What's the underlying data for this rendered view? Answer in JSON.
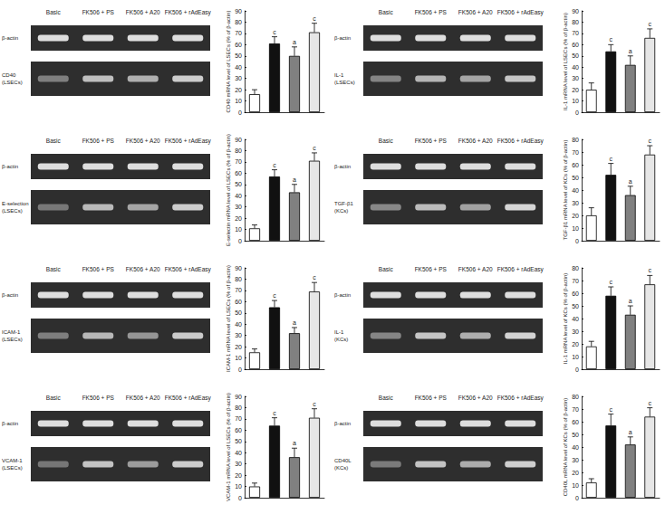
{
  "chart_data": [
    {
      "type": "bar",
      "ylabel": "CD40 mRNA level of LSECs (% of β-actin)",
      "categories": [
        null,
        null,
        null,
        null
      ],
      "values": [
        16,
        61,
        50,
        71
      ],
      "errors": [
        4,
        6,
        8,
        8
      ],
      "significance": [
        null,
        "c",
        "a",
        "c"
      ],
      "colors": [
        "#ffffff",
        "#111111",
        "#808080",
        "#e6e6e6"
      ],
      "ylim": [
        0,
        90
      ],
      "yticks": [
        0,
        10,
        20,
        30,
        40,
        50,
        60,
        70,
        80,
        90
      ],
      "grid": false,
      "tick_labels": "y"
    },
    {
      "type": "bar",
      "ylabel": "IL-1 mRNA level of LSECs (% of β-actin)",
      "categories": [
        null,
        null,
        null,
        null
      ],
      "values": [
        20,
        54,
        42,
        66
      ],
      "errors": [
        6,
        6,
        8,
        8
      ],
      "significance": [
        null,
        "c",
        "a",
        "c"
      ],
      "colors": [
        "#ffffff",
        "#111111",
        "#808080",
        "#e6e6e6"
      ],
      "ylim": [
        0,
        90
      ],
      "yticks": [
        0,
        10,
        20,
        30,
        40,
        50,
        60,
        70,
        80,
        90
      ],
      "grid": false,
      "tick_labels": "y"
    },
    {
      "type": "bar",
      "ylabel": "E-selectin mRNA level of LSECs (% of β-actin)",
      "categories": [
        null,
        null,
        null,
        null
      ],
      "values": [
        11,
        57,
        43,
        71
      ],
      "errors": [
        3,
        6,
        7,
        7
      ],
      "significance": [
        null,
        "c",
        "a",
        "c"
      ],
      "colors": [
        "#ffffff",
        "#111111",
        "#808080",
        "#e6e6e6"
      ],
      "ylim": [
        0,
        90
      ],
      "yticks": [
        0,
        10,
        20,
        30,
        40,
        50,
        60,
        70,
        80,
        90
      ],
      "grid": false,
      "tick_labels": "y"
    },
    {
      "type": "bar",
      "ylabel": "TGF-β1 mRNA level of KCs (% of β-actin)",
      "categories": [
        null,
        null,
        null,
        null
      ],
      "values": [
        20,
        52,
        36,
        68
      ],
      "errors": [
        6,
        9,
        7,
        7
      ],
      "significance": [
        null,
        "c",
        "a",
        "c"
      ],
      "colors": [
        "#ffffff",
        "#111111",
        "#808080",
        "#e6e6e6"
      ],
      "ylim": [
        0,
        80
      ],
      "yticks": [
        0,
        10,
        20,
        30,
        40,
        50,
        60,
        70,
        80
      ],
      "grid": false,
      "tick_labels": "y"
    },
    {
      "type": "bar",
      "ylabel": "ICAM-1 mRNA level of LSECs (% of β-actin)",
      "categories": [
        null,
        null,
        null,
        null
      ],
      "values": [
        15,
        55,
        32,
        69
      ],
      "errors": [
        3,
        6,
        5,
        8
      ],
      "significance": [
        null,
        "c",
        "a",
        "c"
      ],
      "colors": [
        "#ffffff",
        "#111111",
        "#808080",
        "#e6e6e6"
      ],
      "ylim": [
        0,
        90
      ],
      "yticks": [
        0,
        10,
        20,
        30,
        40,
        50,
        60,
        70,
        80,
        90
      ],
      "grid": false,
      "tick_labels": "y"
    },
    {
      "type": "bar",
      "ylabel": "IL-1 mRNA level of KCs (% of β-actin)",
      "categories": [
        null,
        null,
        null,
        null
      ],
      "values": [
        18,
        58,
        43,
        67
      ],
      "errors": [
        4,
        7,
        7,
        7
      ],
      "significance": [
        null,
        "c",
        "a",
        "c"
      ],
      "colors": [
        "#ffffff",
        "#111111",
        "#808080",
        "#e6e6e6"
      ],
      "ylim": [
        0,
        80
      ],
      "yticks": [
        0,
        10,
        20,
        30,
        40,
        50,
        60,
        70,
        80
      ],
      "grid": false,
      "tick_labels": "y"
    },
    {
      "type": "bar",
      "ylabel": "VCAM-1 mRNA level of LSECs (% of β-actin)",
      "categories": [
        null,
        null,
        null,
        null
      ],
      "values": [
        10,
        64,
        36,
        71
      ],
      "errors": [
        3,
        7,
        8,
        8
      ],
      "significance": [
        null,
        "c",
        "a",
        "c"
      ],
      "colors": [
        "#ffffff",
        "#111111",
        "#808080",
        "#e6e6e6"
      ],
      "ylim": [
        0,
        90
      ],
      "yticks": [
        0,
        10,
        20,
        30,
        40,
        50,
        60,
        70,
        80,
        90
      ],
      "grid": false,
      "tick_labels": "y"
    },
    {
      "type": "bar",
      "ylabel": "CD40L mRNA level of KCs (% of β-actin)",
      "categories": [
        null,
        null,
        null,
        null
      ],
      "values": [
        12,
        57,
        42,
        64
      ],
      "errors": [
        3,
        9,
        6,
        7
      ],
      "significance": [
        null,
        "c",
        "a",
        "c"
      ],
      "colors": [
        "#ffffff",
        "#111111",
        "#808080",
        "#e6e6e6"
      ],
      "ylim": [
        0,
        80
      ],
      "yticks": [
        0,
        10,
        20,
        30,
        40,
        50,
        60,
        70,
        80
      ],
      "grid": false,
      "tick_labels": "y"
    }
  ],
  "gels": [
    {
      "lanes": [
        "Basic",
        "FK506 + PS",
        "FK506 + A20",
        "FK506 + rAdEasy"
      ],
      "rows": [
        [
          "β-actin"
        ],
        [
          "CD40",
          "(LSECs)"
        ]
      ]
    },
    {
      "lanes": [
        "Basic",
        "FK506 + PS",
        "FK506 + A20",
        "FK506 + rAdEasy"
      ],
      "rows": [
        [
          "β-actin"
        ],
        [
          "IL-1",
          "(LSECs)"
        ]
      ]
    },
    {
      "lanes": [
        "Basic",
        "FK506 + PS",
        "FK506 + A20",
        "FK506 + rAdEasy"
      ],
      "rows": [
        [
          "β-actin"
        ],
        [
          "E-selection",
          "(LSECs)"
        ]
      ]
    },
    {
      "lanes": [
        "Basic",
        "FK506 + PS",
        "FK506 + A20",
        "FK506 + rAdEasy"
      ],
      "rows": [
        [
          "β-actin"
        ],
        [
          "TGF-β1",
          "(KCs)"
        ]
      ]
    },
    {
      "lanes": [
        "Basic",
        "FK506 + PS",
        "FK506 + A20",
        "FK506 + rAdEasy"
      ],
      "rows": [
        [
          "β-actin"
        ],
        [
          "ICAM-1",
          "(LSECs)"
        ]
      ]
    },
    {
      "lanes": [
        "Basic",
        "FK506 + PS",
        "FK506 + A20",
        "FK506 + rAdEasy"
      ],
      "rows": [
        [
          "β-actin"
        ],
        [
          "IL-1",
          "(KCs)"
        ]
      ]
    },
    {
      "lanes": [
        "Basic",
        "FK506 + PS",
        "FK506 + A20",
        "FK506 + rAdEasy"
      ],
      "rows": [
        [
          "β-actin"
        ],
        [
          "VCAM-1",
          "(LSECs)"
        ]
      ]
    },
    {
      "lanes": [
        "Basic",
        "FK506 + PS",
        "FK506 + A20",
        "FK506 + rAdEasy"
      ],
      "rows": [
        [
          "β-actin"
        ],
        [
          "CD40L",
          "(KCs)"
        ]
      ]
    }
  ]
}
